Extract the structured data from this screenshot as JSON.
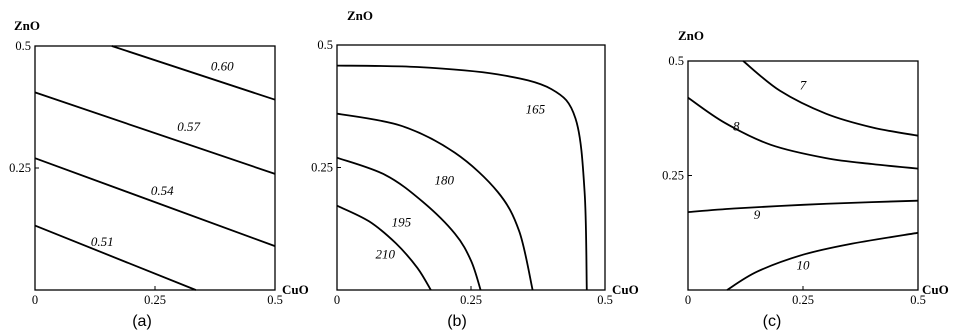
{
  "chart_data": [
    {
      "type": "line",
      "panel_label": "(a)",
      "xlabel": "CuO",
      "ylabel": "ZnO",
      "xlim": [
        0,
        0.5
      ],
      "ylim": [
        0,
        0.5
      ],
      "xticks": [
        "0",
        "0.25",
        "0.5"
      ],
      "yticks": [
        "0.25",
        "0.5"
      ],
      "contours": [
        {
          "label": "0.60",
          "points": [
            [
              0.16,
              0.5
            ],
            [
              0.5,
              0.39
            ]
          ],
          "label_at": [
            0.39,
            0.45
          ]
        },
        {
          "label": "0.57",
          "points": [
            [
              0,
              0.405
            ],
            [
              0.5,
              0.238
            ]
          ],
          "label_at": [
            0.32,
            0.326
          ]
        },
        {
          "label": "0.54",
          "points": [
            [
              0,
              0.27
            ],
            [
              0.5,
              0.09
            ]
          ],
          "label_at": [
            0.265,
            0.195
          ]
        },
        {
          "label": "0.51",
          "points": [
            [
              0,
              0.132
            ],
            [
              0.335,
              0
            ]
          ],
          "label_at": [
            0.14,
            0.09
          ]
        }
      ]
    },
    {
      "type": "line",
      "panel_label": "(b)",
      "xlabel": "CuO",
      "ylabel": "ZnO",
      "xlim": [
        0,
        0.5
      ],
      "ylim": [
        0,
        0.5
      ],
      "xticks": [
        "0",
        "0.25",
        "0.5"
      ],
      "yticks": [
        "0.25",
        "0.5"
      ],
      "contours": [
        {
          "label": "165",
          "points": [
            [
              0,
              0.458
            ],
            [
              0.15,
              0.455
            ],
            [
              0.3,
              0.44
            ],
            [
              0.4,
              0.41
            ],
            [
              0.445,
              0.35
            ],
            [
              0.462,
              0.2
            ],
            [
              0.466,
              0
            ]
          ],
          "label_at": [
            0.37,
            0.36
          ]
        },
        {
          "label": "180",
          "points": [
            [
              0,
              0.36
            ],
            [
              0.12,
              0.335
            ],
            [
              0.22,
              0.28
            ],
            [
              0.3,
              0.2
            ],
            [
              0.34,
              0.12
            ],
            [
              0.365,
              0
            ]
          ],
          "label_at": [
            0.2,
            0.215
          ]
        },
        {
          "label": "195",
          "points": [
            [
              0,
              0.27
            ],
            [
              0.09,
              0.235
            ],
            [
              0.16,
              0.18
            ],
            [
              0.22,
              0.115
            ],
            [
              0.25,
              0.06
            ],
            [
              0.268,
              0
            ]
          ],
          "label_at": [
            0.12,
            0.13
          ]
        },
        {
          "label": "210",
          "points": [
            [
              0,
              0.172
            ],
            [
              0.06,
              0.14
            ],
            [
              0.11,
              0.095
            ],
            [
              0.15,
              0.045
            ],
            [
              0.175,
              0
            ]
          ],
          "label_at": [
            0.09,
            0.064
          ]
        }
      ]
    },
    {
      "type": "line",
      "panel_label": "(c)",
      "xlabel": "CuO",
      "ylabel": "ZnO",
      "xlim": [
        0,
        0.5
      ],
      "ylim": [
        0,
        0.5
      ],
      "xticks": [
        "0",
        "0.25",
        "0.5"
      ],
      "yticks": [
        "0.25",
        "0.5"
      ],
      "contours": [
        {
          "label": "7",
          "points": [
            [
              0.12,
              0.5
            ],
            [
              0.2,
              0.435
            ],
            [
              0.3,
              0.385
            ],
            [
              0.4,
              0.355
            ],
            [
              0.5,
              0.337
            ]
          ],
          "label_at": [
            0.25,
            0.438
          ]
        },
        {
          "label": "8",
          "points": [
            [
              0,
              0.42
            ],
            [
              0.08,
              0.365
            ],
            [
              0.18,
              0.317
            ],
            [
              0.3,
              0.288
            ],
            [
              0.4,
              0.275
            ],
            [
              0.5,
              0.265
            ]
          ],
          "label_at": [
            0.105,
            0.348
          ]
        },
        {
          "label": "9",
          "points": [
            [
              0,
              0.17
            ],
            [
              0.1,
              0.178
            ],
            [
              0.25,
              0.186
            ],
            [
              0.4,
              0.192
            ],
            [
              0.5,
              0.195
            ]
          ],
          "label_at": [
            0.15,
            0.155
          ]
        },
        {
          "label": "10",
          "points": [
            [
              0.085,
              0
            ],
            [
              0.15,
              0.04
            ],
            [
              0.25,
              0.077
            ],
            [
              0.35,
              0.1
            ],
            [
              0.5,
              0.125
            ]
          ],
          "label_at": [
            0.25,
            0.045
          ]
        }
      ]
    }
  ]
}
